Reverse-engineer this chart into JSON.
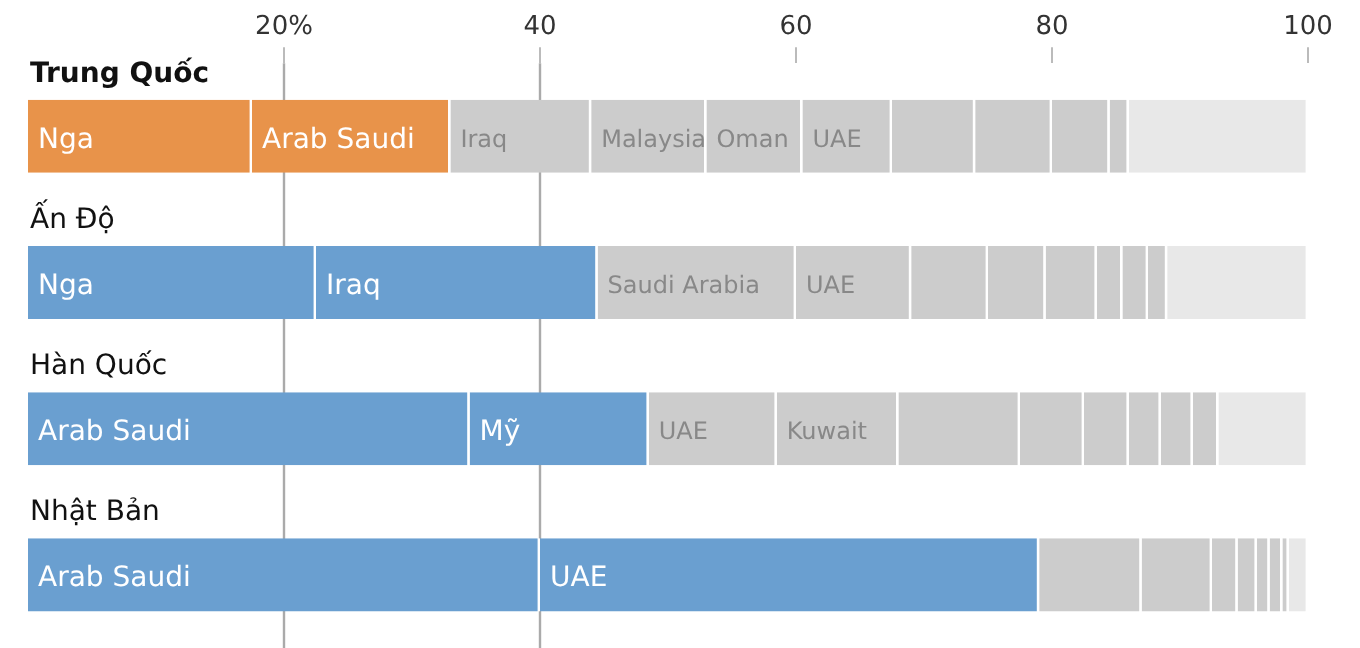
{
  "chart_data": {
    "type": "bar",
    "orientation": "horizontal",
    "stacked": true,
    "legend": false,
    "grid": false,
    "categories": [
      "Trung Quốc",
      "Ấn Độ",
      "Hàn Quốc",
      "Nhật Bản"
    ],
    "xlim": [
      0,
      100
    ],
    "xticks": [
      {
        "value": 20,
        "label": "20%"
      },
      40,
      60,
      80,
      100
    ],
    "ref_lines": [
      {
        "axis": "x",
        "value": 20,
        "color": "#aaaaaa"
      },
      {
        "axis": "x",
        "value": 40,
        "color": "#aaaaaa"
      }
    ],
    "series": [
      {
        "values": [
          17.5,
          22.5,
          34.5,
          40
        ],
        "colors": [
          "#e8934a",
          "#6a9fd0",
          "#6a9fd0",
          "#6a9fd0"
        ],
        "value_labels": [
          "Nga",
          "Nga",
          "Arab Saudi",
          "Arab Saudi"
        ]
      },
      {
        "values": [
          15.5,
          22,
          14,
          39
        ],
        "colors": [
          "#e8934a",
          "#6a9fd0",
          "#6a9fd0",
          "#6a9fd0"
        ],
        "value_labels": [
          "Arab Saudi",
          "Iraq",
          "Mỹ",
          "UAE"
        ]
      },
      {
        "values": [
          11,
          15.5,
          10,
          8
        ],
        "colors": [
          "#cccccc",
          "#cccccc",
          "#cccccc",
          "#cccccc"
        ],
        "value_labels": [
          "Iraq",
          "Saudi Arabia",
          "UAE",
          null
        ]
      },
      {
        "values": [
          9,
          9,
          9.5,
          5.5
        ],
        "colors": [
          "#cccccc",
          "#cccccc",
          "#cccccc",
          "#cccccc"
        ],
        "value_labels": [
          "Malaysia",
          "UAE",
          "Kuwait",
          null
        ]
      },
      {
        "values": [
          7.5,
          6,
          9.5,
          2
        ],
        "colors": [
          "#cccccc",
          "#cccccc",
          "#cccccc",
          "#cccccc"
        ],
        "value_labels": [
          "Oman",
          null,
          null,
          null
        ]
      },
      {
        "values": [
          7,
          4.5,
          5,
          1.5
        ],
        "colors": [
          "#cccccc",
          "#cccccc",
          "#cccccc",
          "#cccccc"
        ],
        "value_labels": [
          "UAE",
          null,
          null,
          null
        ]
      },
      {
        "values": [
          6.5,
          4,
          3.5,
          1
        ],
        "colors": [
          "#cccccc",
          "#cccccc",
          "#cccccc",
          "#cccccc"
        ]
      },
      {
        "values": [
          6,
          2,
          2.5,
          1
        ],
        "colors": [
          "#cccccc",
          "#cccccc",
          "#cccccc",
          "#cccccc"
        ]
      },
      {
        "values": [
          4.5,
          2,
          2.5,
          0.5
        ],
        "colors": [
          "#cccccc",
          "#cccccc",
          "#cccccc",
          "#cccccc"
        ]
      },
      {
        "values": [
          1.5,
          1.5,
          2,
          1.5
        ],
        "colors": [
          "#cccccc",
          "#cccccc",
          "#cccccc",
          "#e8e8e8"
        ]
      },
      {
        "values": [
          14,
          11,
          7,
          null
        ],
        "colors": [
          "#e8e8e8",
          "#e8e8e8",
          "#e8e8e8",
          "#e8e8e8"
        ]
      }
    ]
  }
}
